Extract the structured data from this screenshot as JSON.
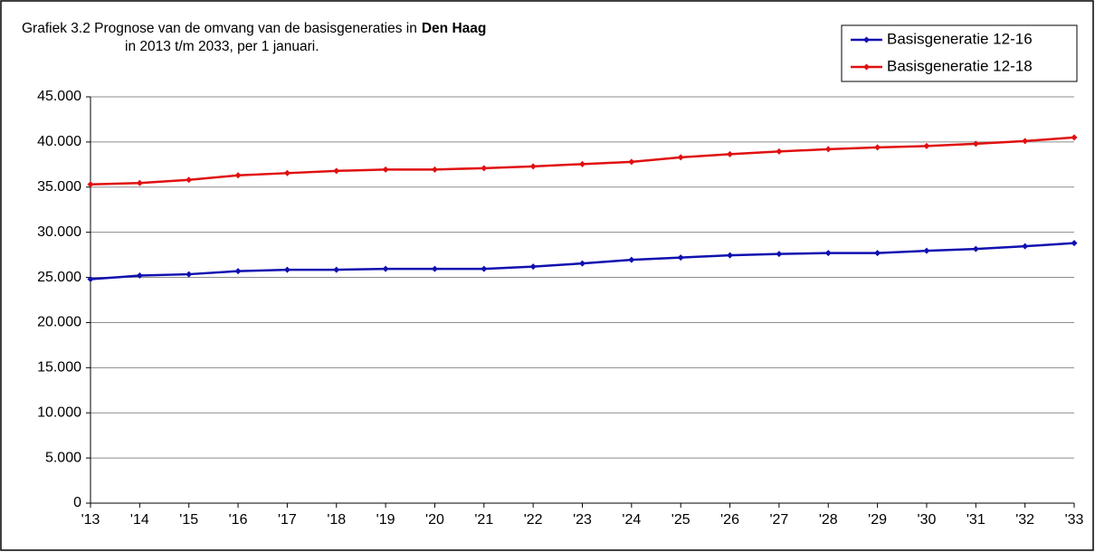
{
  "chart_data": {
    "type": "line",
    "title": "Grafiek 3.2 Prognose van de omvang van de basisgeneraties in",
    "title_bold": "Den Haag",
    "subtitle": "in 2013 t/m 2033, per 1 januari.",
    "categories": [
      "'13",
      "'14",
      "'15",
      "'16",
      "'17",
      "'18",
      "'19",
      "'20",
      "'21",
      "'22",
      "'23",
      "'24",
      "'25",
      "'26",
      "'27",
      "'28",
      "'29",
      "'30",
      "'31",
      "'32",
      "'33"
    ],
    "series": [
      {
        "name": "Basisgeneratie 12-16",
        "color": "#1010b0",
        "values": [
          24800,
          25200,
          25350,
          25700,
          25850,
          25850,
          25950,
          25950,
          25950,
          26200,
          26550,
          26950,
          27200,
          27450,
          27600,
          27700,
          27700,
          27950,
          28150,
          28450,
          28800
        ]
      },
      {
        "name": "Basisgeneratie 12-18",
        "color": "#e01010",
        "values": [
          35300,
          35450,
          35800,
          36300,
          36550,
          36800,
          36950,
          36950,
          37100,
          37300,
          37550,
          37800,
          38300,
          38650,
          38950,
          39200,
          39400,
          39550,
          39800,
          40100,
          40500
        ]
      }
    ],
    "ylim": [
      0,
      45000
    ],
    "yticks": [
      0,
      {
        "value": 5000,
        "label": "5.000"
      },
      {
        "value": 10000,
        "label": "10.000"
      },
      {
        "value": 15000,
        "label": "15.000"
      },
      {
        "value": 20000,
        "label": "20.000"
      },
      {
        "value": 25000,
        "label": "25.000"
      },
      {
        "value": 30000,
        "label": "30.000"
      },
      {
        "value": 35000,
        "label": "35.000"
      },
      {
        "value": 40000,
        "label": "40.000"
      },
      {
        "value": 45000,
        "label": "45.000"
      }
    ],
    "grid": true,
    "legend": "top-right"
  }
}
